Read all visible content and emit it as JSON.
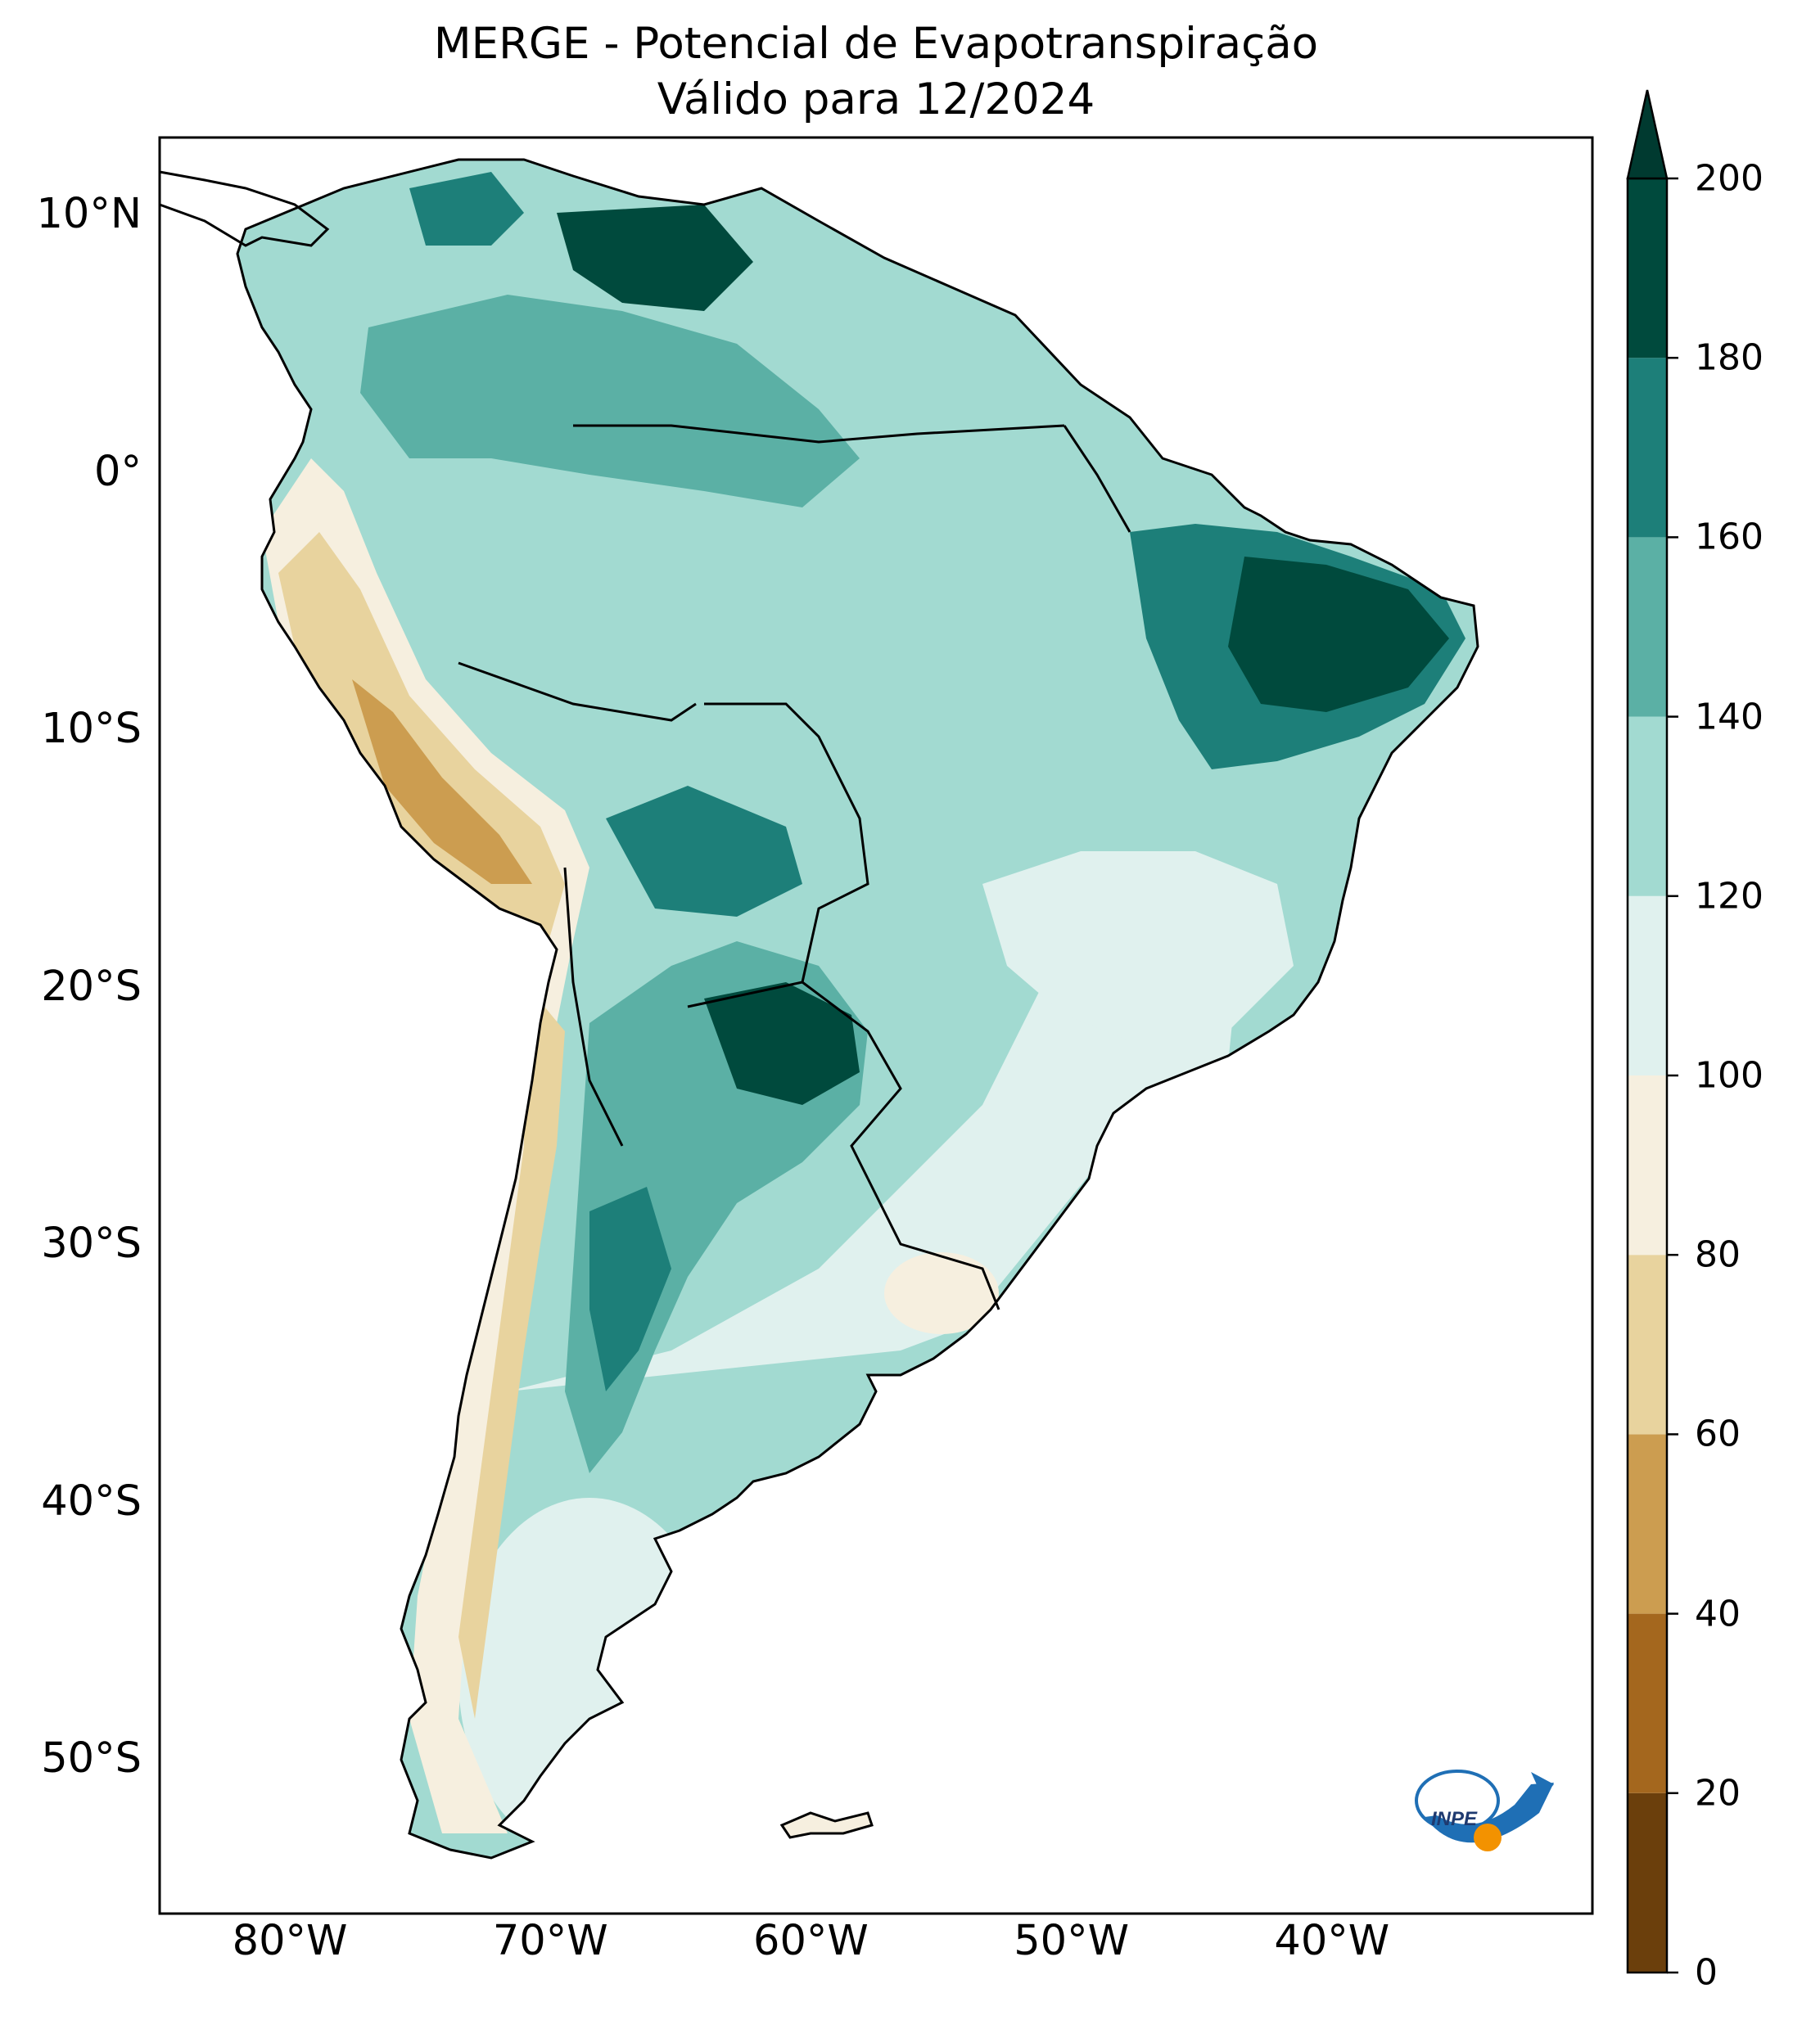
{
  "title": {
    "line1": "MERGE - Potencial de Evapotranspiração",
    "line2": "Válido para 12/2024"
  },
  "map": {
    "extent": {
      "lon_min": -85,
      "lon_max": -30,
      "lat_min": -56,
      "lat_max": 13
    },
    "lat_ticks": [
      {
        "value": 10,
        "label": "10°N"
      },
      {
        "value": 0,
        "label": "0°"
      },
      {
        "value": -10,
        "label": "10°S"
      },
      {
        "value": -20,
        "label": "20°S"
      },
      {
        "value": -30,
        "label": "30°S"
      },
      {
        "value": -40,
        "label": "40°S"
      },
      {
        "value": -50,
        "label": "50°S"
      }
    ],
    "lon_ticks": [
      {
        "value": -80,
        "label": "80°W"
      },
      {
        "value": -70,
        "label": "70°W"
      },
      {
        "value": -60,
        "label": "60°W"
      },
      {
        "value": -50,
        "label": "50°W"
      },
      {
        "value": -40,
        "label": "40°W"
      }
    ]
  },
  "colorbar": {
    "levels": [
      0,
      20,
      40,
      60,
      80,
      100,
      120,
      140,
      160,
      180,
      200
    ],
    "labels": [
      "0",
      "20",
      "40",
      "60",
      "80",
      "100",
      "120",
      "140",
      "160",
      "180",
      "200"
    ],
    "colors": [
      "#6b3f0c",
      "#a4671e",
      "#cc9d50",
      "#e8d39e",
      "#f6efdf",
      "#e0f1ee",
      "#a2dad1",
      "#5bb0a5",
      "#1d7f79",
      "#004a3d"
    ],
    "extend_color": "#003a30"
  },
  "logo": {
    "text": "INPE"
  },
  "colors": {
    "dry_brown": "#cc9d50",
    "tan": "#e8d39e",
    "cream": "#f6efdf",
    "pale_teal": "#e0f1ee",
    "light_teal": "#a2dad1",
    "mid_teal": "#5bb0a5",
    "teal": "#1d7f79",
    "dark_teal": "#004a3d",
    "logo_blue": "#1f6fb5",
    "logo_orange": "#f39200"
  }
}
